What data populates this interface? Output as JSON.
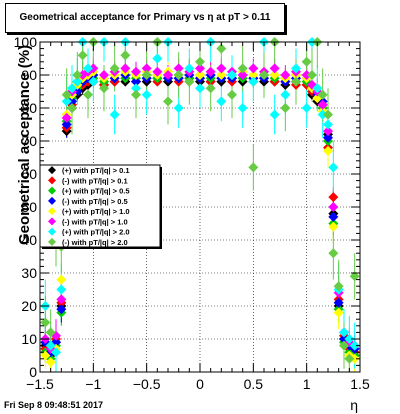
{
  "title": "Geometrical acceptance for Primary vs    η at pT > 0.11",
  "timestamp": "Fri Sep  8 09:48:51 2017",
  "chart_data": {
    "type": "scatter",
    "title": "Geometrical acceptance for Primary vs    η at pT > 0.11",
    "xlabel": "η",
    "ylabel": "Geometrical acceptance (%)",
    "xlim": [
      -1.5,
      1.5
    ],
    "ylim": [
      0,
      100
    ],
    "x_ticks": [
      "−1.5",
      "−1",
      "−0.5",
      "0",
      "0.5",
      "1",
      "1.5"
    ],
    "y_ticks": [
      "0",
      "10",
      "20",
      "30",
      "40",
      "50",
      "60",
      "70",
      "80",
      "90",
      "100"
    ],
    "legend_position": "middle-left",
    "series": [
      {
        "name": "(+) with pT/|q| > 0.1",
        "color": "#000000",
        "x": [
          -1.45,
          -1.4,
          -1.35,
          -1.3,
          -1.25,
          -1.2,
          -1.15,
          -1.1,
          -1.05,
          -1.0,
          -0.9,
          -0.8,
          -0.7,
          -0.6,
          -0.5,
          -0.4,
          -0.3,
          -0.2,
          -0.1,
          0.0,
          0.1,
          0.2,
          0.3,
          0.4,
          0.5,
          0.6,
          0.7,
          0.8,
          0.9,
          1.0,
          1.05,
          1.1,
          1.15,
          1.2,
          1.25,
          1.3,
          1.35,
          1.4,
          1.45
        ],
        "y": [
          8,
          5,
          9,
          20,
          73,
          80,
          84,
          86,
          87,
          88,
          87,
          88,
          88,
          88,
          88,
          89,
          88,
          89,
          89,
          88,
          88,
          88,
          89,
          88,
          89,
          88,
          88,
          87,
          88,
          87,
          84,
          82,
          80,
          72,
          48,
          20,
          10,
          8,
          5
        ],
        "yerr": [
          2,
          2,
          3,
          3,
          2,
          2,
          2,
          2,
          1,
          1,
          1,
          1,
          1,
          1,
          1,
          1,
          1,
          1,
          1,
          1,
          1,
          1,
          1,
          1,
          1,
          1,
          1,
          1,
          1,
          1,
          2,
          2,
          2,
          2,
          3,
          3,
          2,
          2,
          2
        ]
      },
      {
        "name": "(-) with pT/|q| > 0.1",
        "color": "#ff0000",
        "x": [
          -1.45,
          -1.4,
          -1.35,
          -1.3,
          -1.25,
          -1.2,
          -1.15,
          -1.1,
          -1.05,
          -1.0,
          -0.9,
          -0.8,
          -0.7,
          -0.6,
          -0.5,
          -0.4,
          -0.3,
          -0.2,
          -0.1,
          0.0,
          0.1,
          0.2,
          0.3,
          0.4,
          0.5,
          0.6,
          0.7,
          0.8,
          0.9,
          1.0,
          1.05,
          1.1,
          1.15,
          1.2,
          1.25,
          1.3,
          1.35,
          1.4,
          1.45
        ],
        "y": [
          7,
          6,
          10,
          21,
          74,
          81,
          85,
          87,
          88,
          88,
          87,
          88,
          89,
          88,
          89,
          88,
          89,
          88,
          88,
          89,
          88,
          89,
          88,
          89,
          88,
          89,
          88,
          88,
          87,
          87,
          85,
          83,
          81,
          68,
          53,
          22,
          11,
          7,
          6
        ],
        "yerr": [
          2,
          2,
          3,
          3,
          2,
          2,
          2,
          2,
          1,
          1,
          1,
          1,
          1,
          1,
          1,
          1,
          1,
          1,
          1,
          1,
          1,
          1,
          1,
          1,
          1,
          1,
          1,
          1,
          1,
          1,
          2,
          2,
          2,
          2,
          3,
          3,
          2,
          2,
          2
        ]
      },
      {
        "name": "(+) with pT/|q| > 0.5",
        "color": "#00cc00",
        "x": [
          -1.45,
          -1.4,
          -1.35,
          -1.3,
          -1.25,
          -1.2,
          -1.15,
          -1.1,
          -1.05,
          -1.0,
          -0.9,
          -0.8,
          -0.7,
          -0.6,
          -0.5,
          -0.4,
          -0.3,
          -0.2,
          -0.1,
          0.0,
          0.1,
          0.2,
          0.3,
          0.4,
          0.5,
          0.6,
          0.7,
          0.8,
          0.9,
          1.0,
          1.05,
          1.1,
          1.15,
          1.2,
          1.25,
          1.3,
          1.35,
          1.4,
          1.45
        ],
        "y": [
          6,
          4,
          8,
          18,
          76,
          83,
          86,
          88,
          89,
          89,
          88,
          90,
          89,
          89,
          90,
          89,
          89,
          90,
          89,
          90,
          89,
          89,
          90,
          89,
          88,
          90,
          89,
          89,
          90,
          88,
          86,
          84,
          80,
          70,
          45,
          19,
          9,
          6,
          5
        ],
        "yerr": [
          3,
          3,
          4,
          4,
          4,
          3,
          3,
          3,
          2,
          2,
          2,
          2,
          2,
          2,
          2,
          2,
          2,
          2,
          2,
          2,
          2,
          2,
          2,
          2,
          2,
          2,
          2,
          2,
          2,
          2,
          3,
          3,
          3,
          4,
          4,
          4,
          3,
          3,
          3
        ]
      },
      {
        "name": "(-) with pT/|q| > 0.5",
        "color": "#0000ff",
        "x": [
          -1.45,
          -1.4,
          -1.35,
          -1.3,
          -1.25,
          -1.2,
          -1.15,
          -1.1,
          -1.05,
          -1.0,
          -0.9,
          -0.8,
          -0.7,
          -0.6,
          -0.5,
          -0.4,
          -0.3,
          -0.2,
          -0.1,
          0.0,
          0.1,
          0.2,
          0.3,
          0.4,
          0.5,
          0.6,
          0.7,
          0.8,
          0.9,
          1.0,
          1.05,
          1.1,
          1.15,
          1.2,
          1.25,
          1.3,
          1.35,
          1.4,
          1.45
        ],
        "y": [
          9,
          6,
          9,
          19,
          75,
          82,
          85,
          88,
          89,
          90,
          89,
          89,
          90,
          88,
          89,
          90,
          89,
          89,
          90,
          89,
          90,
          89,
          89,
          90,
          89,
          89,
          90,
          88,
          89,
          89,
          86,
          84,
          82,
          71,
          47,
          21,
          10,
          8,
          7
        ],
        "yerr": [
          3,
          3,
          4,
          4,
          4,
          3,
          3,
          3,
          2,
          2,
          2,
          2,
          2,
          2,
          2,
          2,
          2,
          2,
          2,
          2,
          2,
          2,
          2,
          2,
          2,
          2,
          2,
          2,
          2,
          2,
          3,
          3,
          3,
          4,
          4,
          4,
          3,
          3,
          3
        ]
      },
      {
        "name": "(+) with pT/|q| > 1.0",
        "color": "#ffff00",
        "x": [
          -1.45,
          -1.4,
          -1.35,
          -1.3,
          -1.25,
          -1.2,
          -1.15,
          -1.1,
          -1.05,
          -1.0,
          -0.9,
          -0.8,
          -0.7,
          -0.6,
          -0.5,
          -0.4,
          -0.3,
          -0.2,
          -0.1,
          0.0,
          0.1,
          0.2,
          0.3,
          0.4,
          0.5,
          0.6,
          0.7,
          0.8,
          0.9,
          1.0,
          1.05,
          1.1,
          1.15,
          1.2,
          1.25,
          1.3,
          1.35,
          1.4,
          1.45
        ],
        "y": [
          5,
          3,
          7,
          28,
          78,
          84,
          87,
          89,
          90,
          91,
          89,
          90,
          91,
          90,
          91,
          90,
          91,
          90,
          91,
          90,
          91,
          90,
          90,
          91,
          90,
          91,
          90,
          89,
          90,
          89,
          86,
          83,
          79,
          67,
          44,
          18,
          8,
          5,
          4
        ],
        "yerr": [
          4,
          4,
          5,
          5,
          5,
          4,
          4,
          4,
          3,
          3,
          3,
          3,
          3,
          3,
          3,
          3,
          3,
          3,
          3,
          3,
          3,
          3,
          3,
          3,
          3,
          3,
          3,
          3,
          3,
          3,
          4,
          4,
          4,
          5,
          5,
          5,
          4,
          4,
          4
        ]
      },
      {
        "name": "(-) with pT/|q| > 1.0",
        "color": "#ff00ff",
        "x": [
          -1.45,
          -1.4,
          -1.35,
          -1.3,
          -1.25,
          -1.2,
          -1.15,
          -1.1,
          -1.05,
          -1.0,
          -0.9,
          -0.8,
          -0.7,
          -0.6,
          -0.5,
          -0.4,
          -0.3,
          -0.2,
          -0.1,
          0.0,
          0.1,
          0.2,
          0.3,
          0.4,
          0.5,
          0.6,
          0.7,
          0.8,
          0.9,
          1.0,
          1.05,
          1.1,
          1.15,
          1.2,
          1.25,
          1.3,
          1.35,
          1.4,
          1.45
        ],
        "y": [
          10,
          7,
          11,
          22,
          77,
          85,
          88,
          90,
          91,
          92,
          90,
          91,
          92,
          91,
          92,
          91,
          90,
          92,
          91,
          92,
          91,
          92,
          91,
          90,
          92,
          91,
          92,
          90,
          91,
          90,
          87,
          85,
          81,
          73,
          50,
          24,
          12,
          9,
          8
        ],
        "yerr": [
          4,
          4,
          5,
          5,
          5,
          4,
          4,
          4,
          3,
          3,
          3,
          3,
          3,
          3,
          3,
          3,
          3,
          3,
          3,
          3,
          3,
          3,
          3,
          3,
          3,
          3,
          3,
          3,
          3,
          3,
          4,
          4,
          4,
          5,
          5,
          5,
          4,
          4,
          4
        ]
      },
      {
        "name": "(+) with pT/|q| > 2.0",
        "color": "#00ffff",
        "x": [
          -1.45,
          -1.4,
          -1.35,
          -1.3,
          -1.25,
          -1.2,
          -1.15,
          -1.1,
          -1.05,
          -1.0,
          -0.9,
          -0.8,
          -0.7,
          -0.6,
          -0.5,
          -0.4,
          -0.3,
          -0.2,
          -0.1,
          0.0,
          0.1,
          0.2,
          0.3,
          0.4,
          0.5,
          0.6,
          0.7,
          0.8,
          0.9,
          1.0,
          1.05,
          1.1,
          1.15,
          1.2,
          1.25,
          1.3,
          1.35,
          1.4,
          1.45
        ],
        "y": [
          20,
          8,
          6,
          25,
          82,
          86,
          88,
          100,
          92,
          88,
          100,
          78,
          100,
          86,
          84,
          95,
          100,
          80,
          92,
          86,
          100,
          82,
          90,
          80,
          88,
          100,
          78,
          84,
          92,
          80,
          100,
          86,
          78,
          75,
          62,
          25,
          12,
          10,
          8
        ],
        "yerr": [
          8,
          6,
          6,
          8,
          8,
          7,
          7,
          7,
          6,
          6,
          6,
          6,
          6,
          6,
          6,
          6,
          6,
          6,
          6,
          6,
          6,
          6,
          6,
          6,
          6,
          6,
          6,
          6,
          6,
          6,
          7,
          7,
          7,
          8,
          8,
          8,
          7,
          7,
          7
        ]
      },
      {
        "name": "(-) with pT/|q| > 2.0",
        "color": "#66cc44",
        "x": [
          -1.45,
          -1.4,
          -1.35,
          -1.3,
          -1.25,
          -1.2,
          -1.15,
          -1.1,
          -1.05,
          -1.0,
          -0.9,
          -0.8,
          -0.7,
          -0.6,
          -0.5,
          -0.4,
          -0.3,
          -0.2,
          -0.1,
          0.0,
          0.1,
          0.2,
          0.3,
          0.4,
          0.5,
          0.6,
          0.7,
          0.8,
          0.9,
          1.0,
          1.05,
          1.1,
          1.15,
          1.2,
          1.25,
          1.3,
          1.35,
          1.4,
          1.45
        ],
        "y": [
          15,
          12,
          40,
          38,
          84,
          80,
          90,
          96,
          84,
          100,
          86,
          92,
          96,
          84,
          90,
          100,
          82,
          90,
          88,
          94,
          86,
          98,
          84,
          92,
          62,
          90,
          100,
          80,
          88,
          94,
          90,
          100,
          84,
          78,
          36,
          26,
          8,
          4,
          29
        ],
        "yerr": [
          8,
          7,
          8,
          8,
          8,
          8,
          7,
          7,
          7,
          7,
          7,
          7,
          7,
          7,
          7,
          7,
          7,
          7,
          7,
          7,
          7,
          7,
          7,
          7,
          7,
          7,
          7,
          7,
          7,
          7,
          8,
          8,
          8,
          8,
          8,
          8,
          7,
          7,
          7
        ]
      }
    ]
  }
}
